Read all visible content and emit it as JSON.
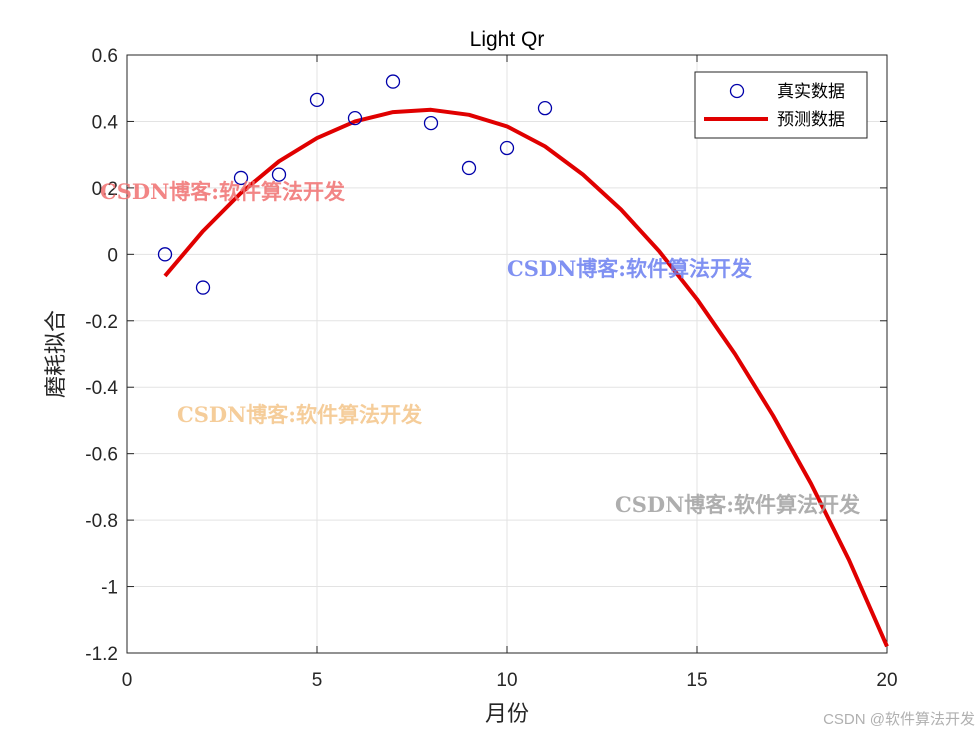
{
  "chart_data": {
    "type": "line",
    "title": "Light Qr",
    "xlabel": "月份",
    "ylabel": "磨耗拟合",
    "xlim": [
      0,
      20
    ],
    "ylim": [
      -1.2,
      0.6
    ],
    "xticks": [
      0,
      5,
      10,
      15,
      20
    ],
    "yticks": [
      -1.2,
      -1,
      -0.8,
      -0.6,
      -0.4,
      -0.2,
      0,
      0.2,
      0.4,
      0.6
    ],
    "grid": true,
    "legend_position": "top-right",
    "series": [
      {
        "name": "真实数据",
        "kind": "scatter",
        "marker": "circle",
        "color": "#0000aa",
        "x": [
          1,
          2,
          3,
          4,
          5,
          6,
          7,
          8,
          9,
          10,
          11
        ],
        "y": [
          0.0,
          -0.1,
          0.23,
          0.24,
          0.465,
          0.41,
          0.52,
          0.395,
          0.26,
          0.32,
          0.44
        ]
      },
      {
        "name": "预测数据",
        "kind": "line",
        "color": "#e00000",
        "x": [
          1,
          2,
          3,
          4,
          5,
          6,
          7,
          8,
          9,
          10,
          11,
          12,
          13,
          14,
          15,
          16,
          17,
          18,
          19,
          20
        ],
        "y": [
          -0.065,
          0.07,
          0.185,
          0.28,
          0.35,
          0.4,
          0.428,
          0.435,
          0.42,
          0.385,
          0.325,
          0.24,
          0.135,
          0.01,
          -0.135,
          -0.3,
          -0.485,
          -0.69,
          -0.92,
          -1.18
        ]
      }
    ]
  },
  "watermarks": [
    {
      "text": "CSDN博客:软件算法开发",
      "color": "#f07070"
    },
    {
      "text": "CSDN博客:软件算法开发",
      "color": "#6a7ef0"
    },
    {
      "text": "CSDN博客:软件算法开发",
      "color": "#f5c890"
    },
    {
      "text": "CSDN博客:软件算法开发",
      "color": "#a0a0a0"
    }
  ],
  "credit": "CSDN @软件算法开发"
}
